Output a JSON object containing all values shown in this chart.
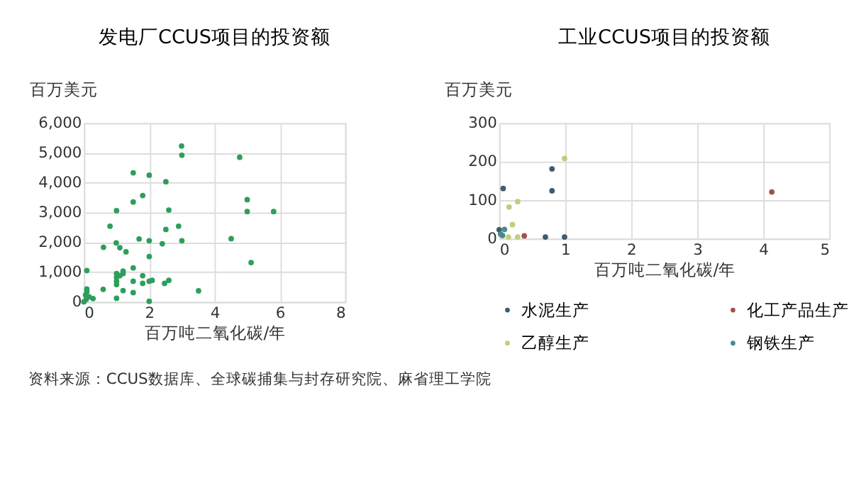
{
  "chart_data": [
    {
      "type": "scatter",
      "title": "发电厂CCUS项目的投资额",
      "xlabel": "百万吨二氧化碳/年",
      "ylabel": "百万美元",
      "xlim": [
        0,
        8
      ],
      "xticks": [
        0,
        2,
        4,
        6,
        8
      ],
      "ylim": [
        0,
        6000
      ],
      "yticks": [
        0,
        {
          "value": 1000,
          "label": "1,000"
        },
        {
          "value": 2000,
          "label": "2,000"
        },
        {
          "value": 3000,
          "label": "3,000"
        },
        {
          "value": 4000,
          "label": "4,000"
        },
        {
          "value": 5000,
          "label": "5,000"
        },
        {
          "value": 6000,
          "label": "6,000"
        }
      ],
      "grid": true,
      "legend": false,
      "marker": "circle",
      "annotations": [
        "资料来源：CCUS数据库、全球碳捕集与封存研究院、麻省理工学院"
      ],
      "series": [
        {
          "color": "#2e9e5b",
          "x": [
            2.99,
            3.0,
            4.77,
            1.51,
            2.0,
            2.51,
            1.51,
            1.8,
            5.0,
            5.0,
            5.81,
            1.0,
            2.6,
            0.8,
            2.9,
            2.51,
            1.69,
            2.0,
            3.0,
            2.4,
            4.51,
            0.99,
            1.1,
            0.6,
            1.29,
            2.0,
            5.12,
            0.09,
            1.51,
            1.2,
            1.2,
            1.0,
            1.1,
            1.0,
            1.8,
            1.0,
            1.0,
            1.51,
            1.8,
            2.0,
            2.09,
            2.6,
            2.47,
            0.59,
            1.2,
            1.51,
            3.51,
            1.0,
            2.0,
            0.09,
            0.09,
            0.05,
            0.16,
            0.28,
            0.07,
            0.0
          ],
          "values": [
            5230,
            4920,
            4850,
            4330,
            4250,
            4030,
            3350,
            3570,
            3430,
            3030,
            3030,
            3060,
            3080,
            2540,
            2540,
            2430,
            2110,
            2050,
            2050,
            1950,
            2120,
            1980,
            1820,
            1830,
            1680,
            1520,
            1320,
            1050,
            1140,
            1030,
            950,
            950,
            880,
            820,
            880,
            580,
            690,
            690,
            620,
            690,
            720,
            720,
            620,
            420,
            380,
            310,
            370,
            120,
            20,
            430,
            340,
            230,
            170,
            110,
            80,
            0
          ]
        }
      ]
    },
    {
      "type": "scatter",
      "title": "工业CCUS项目的投资额",
      "xlabel": "百万吨二氧化碳/年",
      "ylabel": "百万美元",
      "xlim": [
        0,
        5
      ],
      "xticks": [
        0,
        1,
        2,
        3,
        4,
        5
      ],
      "ylim": [
        0,
        300
      ],
      "yticks": [
        0,
        100,
        200,
        300
      ],
      "grid": true,
      "legend": "bottom",
      "marker": "circle",
      "series": [
        {
          "name": "水泥生产",
          "color": "#3e5a6e",
          "x": [
            0.06,
            0.8,
            0.8,
            0.99,
            0.7,
            0.0
          ],
          "values": [
            130,
            181,
            124,
            4,
            4,
            23
          ]
        },
        {
          "name": "化工产品生产",
          "color": "#a0524a",
          "x": [
            4.13,
            0.38
          ],
          "values": [
            121,
            7
          ]
        },
        {
          "name": "乙醇生产",
          "color": "#c2cc7e",
          "x": [
            0.99,
            0.28,
            0.15,
            0.2,
            0.28,
            0.14
          ],
          "values": [
            208,
            96,
            82,
            36,
            4,
            4
          ]
        },
        {
          "name": "钢铁生产",
          "color": "#4a8a8a",
          "x": [
            0.08,
            0.02,
            0.05
          ],
          "values": [
            24,
            12,
            8
          ]
        }
      ]
    }
  ]
}
